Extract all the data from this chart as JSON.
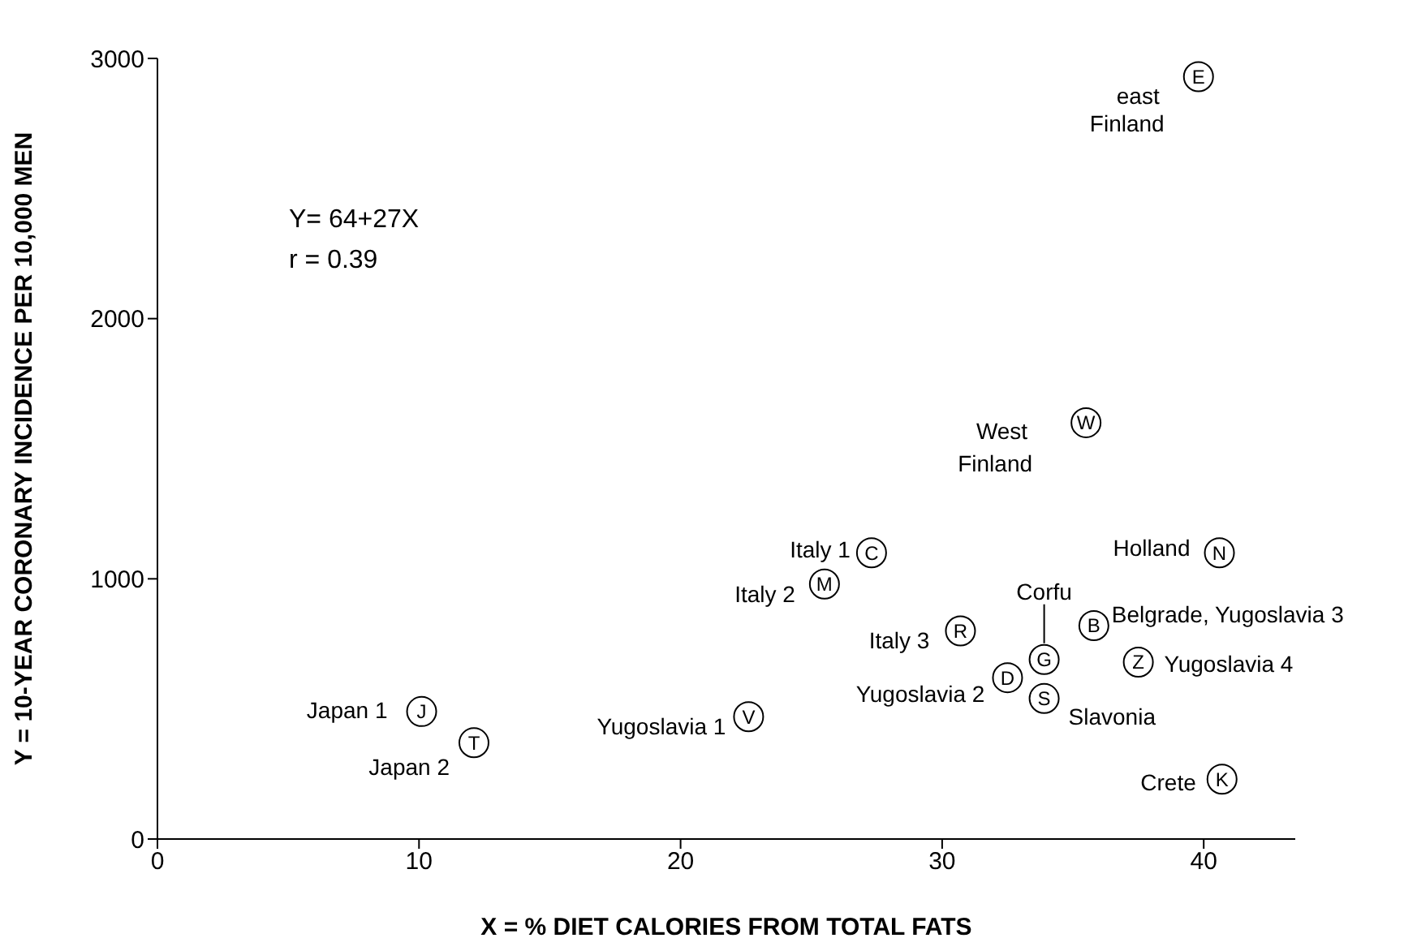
{
  "chart_data": {
    "type": "scatter",
    "xlabel": "X = % DIET CALORIES FROM TOTAL FATS",
    "ylabel": "Y = 10-YEAR CORONARY INCIDENCE PER 10,000 MEN",
    "x": [
      39.8,
      35.5,
      27.3,
      25.5,
      40.6,
      30.7,
      35.8,
      33.9,
      37.5,
      32.5,
      33.9,
      22.6,
      10.1,
      12.1,
      40.7
    ],
    "values": [
      2930,
      1600,
      1100,
      980,
      1100,
      800,
      820,
      690,
      680,
      620,
      540,
      470,
      490,
      370,
      230
    ],
    "value_labels": [
      "E",
      "W",
      "C",
      "M",
      "N",
      "R",
      "B",
      "G",
      "Z",
      "D",
      "S",
      "V",
      "J",
      "T",
      "K"
    ],
    "color": "#000000",
    "marker": "circle",
    "grid": false,
    "legend": false,
    "xlim": [
      0,
      43.5
    ],
    "ylim": [
      0,
      3000
    ],
    "xticks": [
      0,
      10,
      20,
      30,
      40
    ],
    "yticks": [
      0,
      1000,
      2000,
      3000
    ],
    "annotations": [
      "Y= 64+27X",
      "r = 0.39",
      {
        "text": "east\nFinland",
        "x": 39.8,
        "y": 2930
      },
      {
        "text": "West\nFinland",
        "x": 35.5,
        "y": 1600
      },
      {
        "text": "Italy 1",
        "x": 27.3,
        "y": 1100
      },
      {
        "text": "Italy 2",
        "x": 25.5,
        "y": 980
      },
      {
        "text": "Holland",
        "x": 40.6,
        "y": 1100
      },
      {
        "text": "Italy 3",
        "x": 30.7,
        "y": 800
      },
      {
        "text": "Belgrade, Yugoslavia 3",
        "x": 35.8,
        "y": 820
      },
      {
        "text": "Corfu",
        "x": 33.9,
        "y": 690
      },
      {
        "text": "Yugoslavia 4",
        "x": 37.5,
        "y": 680
      },
      {
        "text": "Yugoslavia 2",
        "x": 32.5,
        "y": 620
      },
      {
        "text": "Slavonia",
        "x": 33.9,
        "y": 540
      },
      {
        "text": "Yugoslavia 1",
        "x": 22.6,
        "y": 470
      },
      {
        "text": "Japan 1",
        "x": 10.1,
        "y": 490
      },
      {
        "text": "Japan 2",
        "x": 12.1,
        "y": 370
      },
      {
        "text": "Crete",
        "x": 40.7,
        "y": 230
      }
    ]
  }
}
